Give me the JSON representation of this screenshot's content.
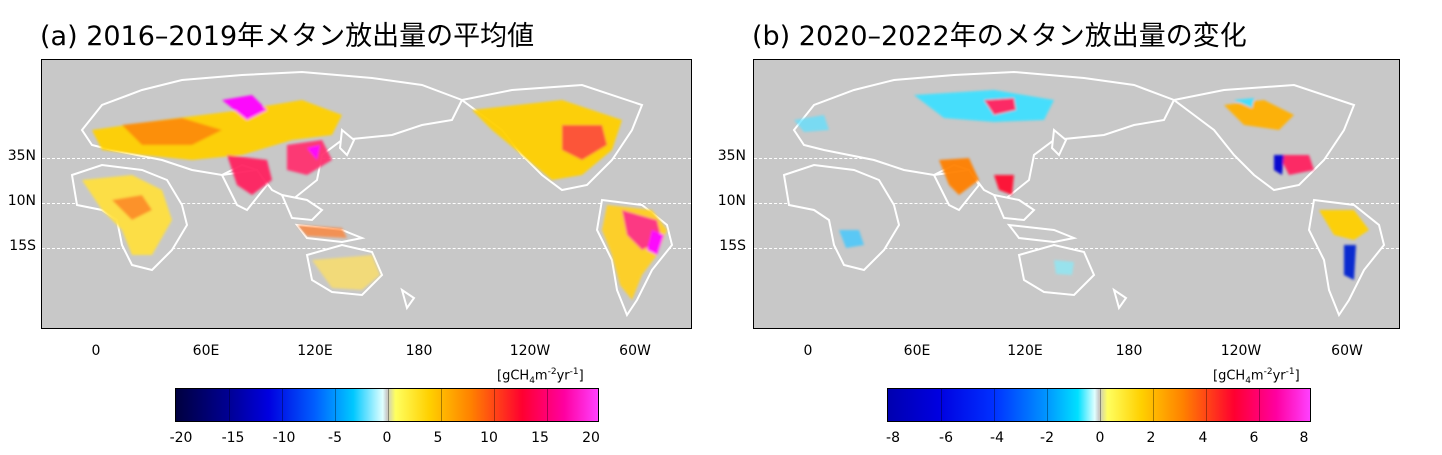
{
  "panel_a": {
    "title": "(a) 2016–2019年メタン放出量の平均値",
    "lat_labels": [
      "35N",
      "10N",
      "15S"
    ],
    "lon_labels": [
      "0",
      "60E",
      "120E",
      "180",
      "120W",
      "60W"
    ],
    "colorbar": {
      "unit_prefix": "[gCH",
      "unit_sub": "4",
      "unit_mid": "m",
      "unit_sup1": "-2",
      "unit_yr": "yr",
      "unit_sup2": "-1",
      "unit_suffix": "]",
      "ticks": [
        "-20",
        "-15",
        "-10",
        "-5",
        "0",
        "5",
        "10",
        "15",
        "20"
      ]
    }
  },
  "panel_b": {
    "title": "(b) 2020–2022年のメタン放出量の変化",
    "lat_labels": [
      "35N",
      "10N",
      "15S"
    ],
    "lon_labels": [
      "0",
      "60E",
      "120E",
      "180",
      "120W",
      "60W"
    ],
    "colorbar": {
      "unit_prefix": "[gCH",
      "unit_sub": "4",
      "unit_mid": "m",
      "unit_sup1": "-2",
      "unit_yr": "yr",
      "unit_sup2": "-1",
      "unit_suffix": "]",
      "ticks": [
        "-8",
        "-6",
        "-4",
        "-2",
        "0",
        "2",
        "4",
        "6",
        "8"
      ]
    }
  },
  "colors": {
    "ocean": "#c8c8c8",
    "coast": "#ffffff",
    "neg_scale": [
      "#000050",
      "#0000c8",
      "#0050ff",
      "#00c8ff",
      "#c8ffff"
    ],
    "pos_scale": [
      "#ffff64",
      "#ffc800",
      "#ff6400",
      "#ff0032",
      "#ff00ff"
    ]
  }
}
